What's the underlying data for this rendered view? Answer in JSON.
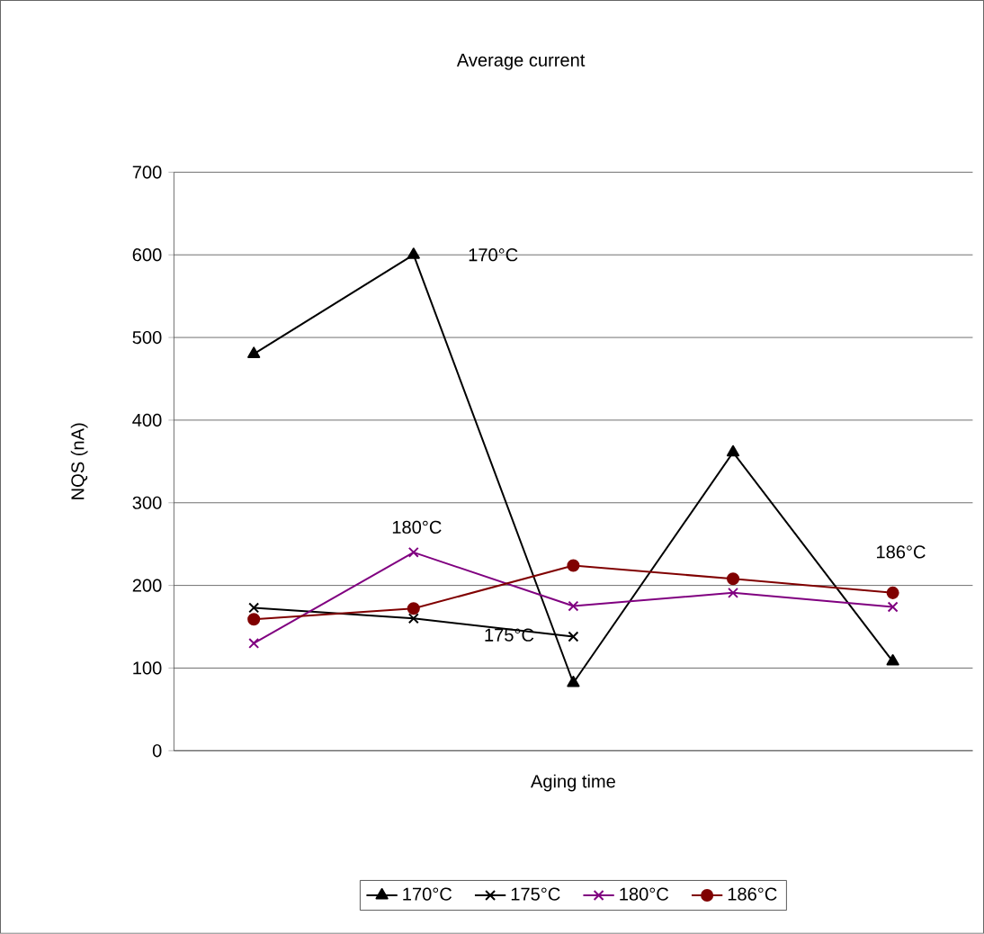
{
  "chart_data": {
    "type": "line",
    "title": "Average current",
    "xlabel": "Aging time",
    "ylabel": "NQS (nA)",
    "categories": [
      null,
      null,
      null,
      null,
      null
    ],
    "series": [
      {
        "name": "170°C",
        "color": "#000000",
        "marker": "triangle",
        "values": [
          480,
          600,
          82,
          361,
          108
        ]
      },
      {
        "name": "175°C",
        "color": "#000000",
        "marker": "cross",
        "values": [
          173,
          160,
          138,
          null,
          null
        ]
      },
      {
        "name": "180°C",
        "color": "#800080",
        "marker": "cross",
        "values": [
          130,
          240,
          175,
          191,
          174
        ]
      },
      {
        "name": "186°C",
        "color": "#800000",
        "marker": "circle",
        "values": [
          159,
          172,
          224,
          208,
          191
        ]
      }
    ],
    "annotations": [
      "170°C",
      "180°C",
      "175°C",
      "186°C"
    ],
    "ylim": [
      0,
      700
    ],
    "yticks": [
      0,
      100,
      200,
      300,
      400,
      500,
      600,
      700
    ],
    "grid": "y",
    "legend": "bottom"
  }
}
